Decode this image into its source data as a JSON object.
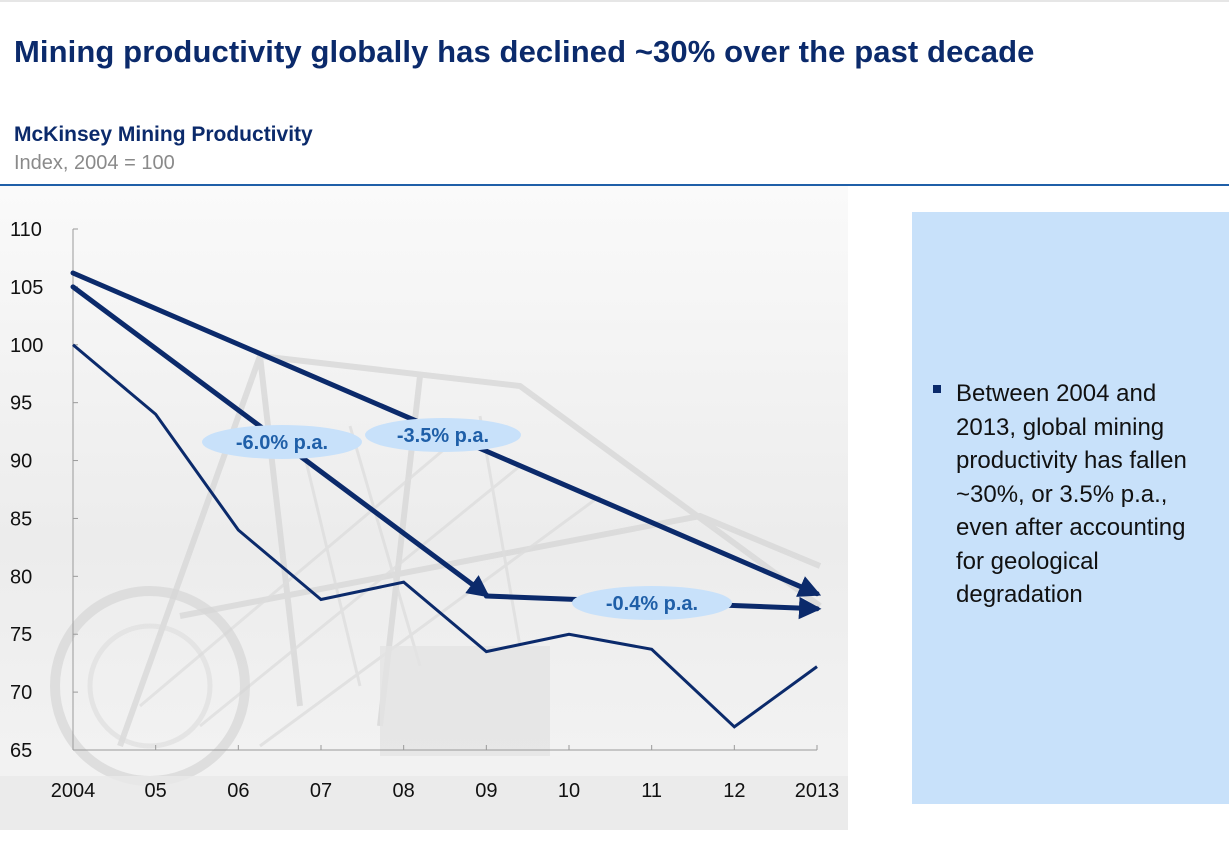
{
  "slide": {
    "title": "Mining productivity globally has declined ~30% over the past decade",
    "subtitle": "McKinsey Mining Productivity",
    "unit": "Index, 2004 = 100"
  },
  "callout": {
    "bullet": "Between 2004 and 2013, global mining productivity has fallen ~30%, or 3.5% p.a., even after accounting for geological degradation"
  },
  "colors": {
    "primary": "#0b2a6b",
    "accent": "#1f5fa8",
    "badge_fill": "#c8e1fa",
    "callout_bg": "#c8e1fa"
  },
  "chart_data": {
    "type": "line",
    "title": "McKinsey Mining Productivity",
    "ylabel": "Index, 2004 = 100",
    "xlabel": "",
    "categories": [
      "2004",
      "05",
      "06",
      "07",
      "08",
      "09",
      "10",
      "11",
      "12",
      "2013"
    ],
    "x": [
      2004,
      2005,
      2006,
      2007,
      2008,
      2009,
      2010,
      2011,
      2012,
      2013
    ],
    "ylim": [
      65,
      110
    ],
    "yticks": [
      110,
      105,
      100,
      95,
      90,
      85,
      80,
      75,
      70,
      65
    ],
    "series": [
      {
        "name": "McKinsey Mining Productivity index",
        "values": [
          100,
          94,
          84,
          78,
          79.5,
          73.5,
          75,
          73.7,
          67,
          72.2
        ]
      }
    ],
    "trend_arrows": [
      {
        "label": "-3.5% p.a.",
        "from": [
          2004,
          106.2
        ],
        "to": [
          2013,
          78.5
        ]
      },
      {
        "label": "-6.0% p.a.",
        "from": [
          2004,
          105
        ],
        "to": [
          2009,
          78.4
        ]
      },
      {
        "label": "-0.4% p.a.",
        "from": [
          2009,
          78.3
        ],
        "to": [
          2013,
          77.2
        ]
      }
    ]
  }
}
